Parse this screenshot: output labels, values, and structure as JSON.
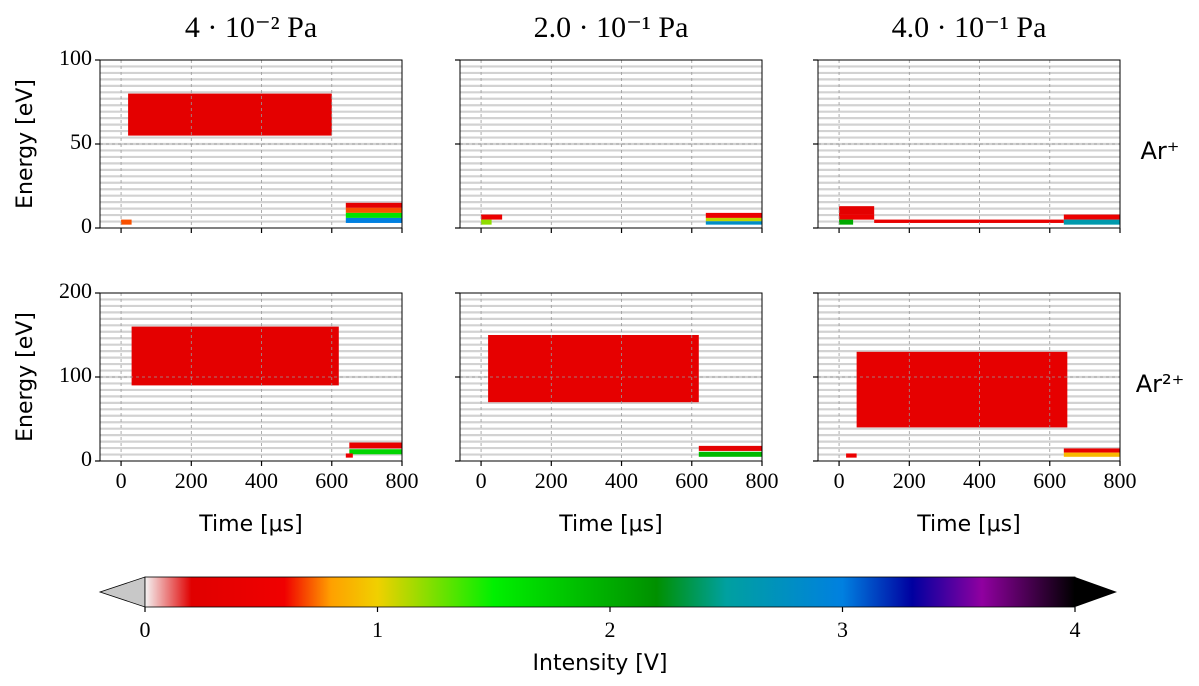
{
  "chart_data": {
    "type": "heatmap",
    "column_titles": [
      "4 · 10⁻² Pa",
      "2.0 · 10⁻¹ Pa",
      "4.0 · 10⁻¹ Pa"
    ],
    "x_label": "Time [μs]",
    "y_label": "Energy [eV]",
    "xlim": [
      -60,
      800
    ],
    "xticks": [
      0,
      200,
      400,
      600,
      800
    ],
    "grid": true,
    "rows": [
      {
        "label": "Ar⁺",
        "ylim": [
          0,
          100
        ],
        "yticks": [
          0,
          50,
          100
        ],
        "panels": [
          {
            "cells": [
              {
                "t": [
                  20,
                  600
                ],
                "e": [
                  55,
                  80
                ],
                "v": 0.3
              },
              {
                "t": [
                  0,
                  30
                ],
                "e": [
                  2,
                  5
                ],
                "v": 0.7
              },
              {
                "t": [
                  640,
                  800
                ],
                "e": [
                  12,
                  15
                ],
                "v": 0.3
              },
              {
                "t": [
                  640,
                  800
                ],
                "e": [
                  9,
                  12
                ],
                "v": 0.7
              },
              {
                "t": [
                  640,
                  800
                ],
                "e": [
                  6,
                  9
                ],
                "v": 1.6
              },
              {
                "t": [
                  640,
                  800
                ],
                "e": [
                  3,
                  6
                ],
                "v": 3
              }
            ]
          },
          {
            "cells": [
              {
                "t": [
                  0,
                  60
                ],
                "e": [
                  5,
                  8
                ],
                "v": 0.5
              },
              {
                "t": [
                  0,
                  30
                ],
                "e": [
                  2,
                  5
                ],
                "v": 1.2
              },
              {
                "t": [
                  640,
                  800
                ],
                "e": [
                  6,
                  9
                ],
                "v": 0.5
              },
              {
                "t": [
                  640,
                  800
                ],
                "e": [
                  4,
                  6
                ],
                "v": 1.1
              },
              {
                "t": [
                  640,
                  800
                ],
                "e": [
                  2,
                  4
                ],
                "v": 2.8
              }
            ]
          },
          {
            "cells": [
              {
                "t": [
                  0,
                  100
                ],
                "e": [
                  8,
                  13
                ],
                "v": 0.3
              },
              {
                "t": [
                  0,
                  100
                ],
                "e": [
                  5,
                  8
                ],
                "v": 0.5
              },
              {
                "t": [
                  0,
                  40
                ],
                "e": [
                  2,
                  5
                ],
                "v": 2
              },
              {
                "t": [
                  100,
                  640
                ],
                "e": [
                  3,
                  5
                ],
                "v": 0.4
              },
              {
                "t": [
                  640,
                  800
                ],
                "e": [
                  5,
                  8
                ],
                "v": 0.5
              },
              {
                "t": [
                  640,
                  800
                ],
                "e": [
                  2,
                  5
                ],
                "v": 2.6
              }
            ]
          }
        ]
      },
      {
        "label": "Ar²⁺",
        "ylim": [
          0,
          200
        ],
        "yticks": [
          0,
          100,
          200
        ],
        "panels": [
          {
            "cells": [
              {
                "t": [
                  30,
                  620
                ],
                "e": [
                  90,
                  160
                ],
                "v": 0.3
              },
              {
                "t": [
                  650,
                  800
                ],
                "e": [
                  15,
                  22
                ],
                "v": 0.4
              },
              {
                "t": [
                  650,
                  800
                ],
                "e": [
                  8,
                  14
                ],
                "v": 1.7
              },
              {
                "t": [
                  640,
                  660
                ],
                "e": [
                  4,
                  9
                ],
                "v": 0.5
              }
            ]
          },
          {
            "cells": [
              {
                "t": [
                  20,
                  620
                ],
                "e": [
                  70,
                  150
                ],
                "v": 0.35
              },
              {
                "t": [
                  620,
                  800
                ],
                "e": [
                  12,
                  18
                ],
                "v": 0.3
              },
              {
                "t": [
                  620,
                  800
                ],
                "e": [
                  5,
                  11
                ],
                "v": 1.9
              }
            ]
          },
          {
            "cells": [
              {
                "t": [
                  50,
                  650
                ],
                "e": [
                  40,
                  130
                ],
                "v": 0.35
              },
              {
                "t": [
                  20,
                  50
                ],
                "e": [
                  4,
                  9
                ],
                "v": 0.5
              },
              {
                "t": [
                  640,
                  800
                ],
                "e": [
                  10,
                  15
                ],
                "v": 0.4
              },
              {
                "t": [
                  640,
                  800
                ],
                "e": [
                  5,
                  10
                ],
                "v": 0.9
              }
            ]
          }
        ]
      }
    ],
    "colorbar": {
      "label": "Intensity [V]",
      "lim": [
        0,
        4
      ],
      "ticks": [
        0,
        1,
        2,
        3,
        4
      ],
      "under_color": "#c8c8c8",
      "over_color": "#000000",
      "stops": [
        {
          "value": 0,
          "color": "#f4f4f4"
        },
        {
          "value": 0.2,
          "color": "#e00000"
        },
        {
          "value": 0.6,
          "color": "#f00000"
        },
        {
          "value": 0.8,
          "color": "#ffa000"
        },
        {
          "value": 1,
          "color": "#f0d000"
        },
        {
          "value": 1.5,
          "color": "#00f000"
        },
        {
          "value": 2.2,
          "color": "#009000"
        },
        {
          "value": 2.5,
          "color": "#00a0a0"
        },
        {
          "value": 3,
          "color": "#0080e0"
        },
        {
          "value": 3.3,
          "color": "#0000a0"
        },
        {
          "value": 3.6,
          "color": "#9000a0"
        },
        {
          "value": 4,
          "color": "#000000"
        }
      ]
    }
  }
}
